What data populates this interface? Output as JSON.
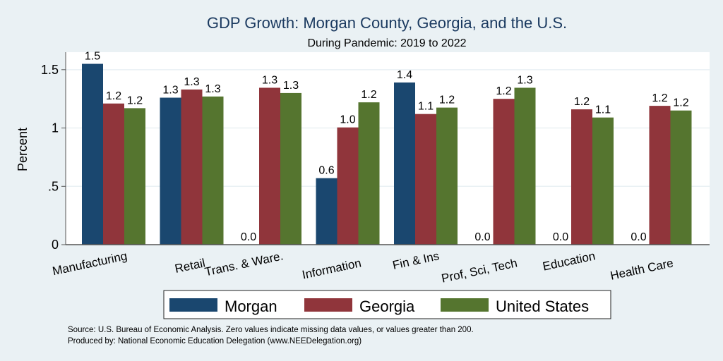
{
  "chart_data": {
    "type": "bar",
    "title": "GDP Growth: Morgan County, Georgia, and the U.S.",
    "subtitle": "During Pandemic: 2019 to 2022",
    "xlabel": "",
    "ylabel": "Percent",
    "ylim": [
      0,
      1.65
    ],
    "yticks": [
      0,
      0.5,
      1,
      1.5
    ],
    "ytick_labels": [
      "0",
      ".5",
      "1",
      "1.5"
    ],
    "grid": true,
    "legend_position": "bottom",
    "categories": [
      "Manufacturing",
      "Retail",
      "Trans. & Ware.",
      "Information",
      "Fin & Ins",
      "Prof, Sci, Tech",
      "Education",
      "Health Care"
    ],
    "series": [
      {
        "name": "Morgan",
        "color": "#1a476f",
        "values": [
          1.55,
          1.26,
          0.0,
          0.57,
          1.39,
          0.0,
          0.0,
          0.0
        ],
        "labels": [
          "1.5",
          "1.3",
          "0.0",
          "0.6",
          "1.4",
          "0.0",
          "0.0",
          "0.0"
        ]
      },
      {
        "name": "Georgia",
        "color": "#90353b",
        "values": [
          1.21,
          1.33,
          1.345,
          1.005,
          1.12,
          1.25,
          1.16,
          1.19
        ],
        "labels": [
          "1.2",
          "1.3",
          "1.3",
          "1.0",
          "1.1",
          "1.2",
          "1.2",
          "1.2"
        ]
      },
      {
        "name": "United States",
        "color": "#55752f",
        "values": [
          1.17,
          1.27,
          1.3,
          1.22,
          1.175,
          1.345,
          1.09,
          1.15
        ],
        "labels": [
          "1.2",
          "1.3",
          "1.3",
          "1.2",
          "1.2",
          "1.3",
          "1.1",
          "1.2"
        ]
      }
    ],
    "notes": [
      "Source: U.S. Bureau of Economic Analysis. Zero values indicate missing data values, or values greater than 200.",
      "Produced by: National Economic Education Delegation (www.NEEDelegation.org)"
    ]
  }
}
